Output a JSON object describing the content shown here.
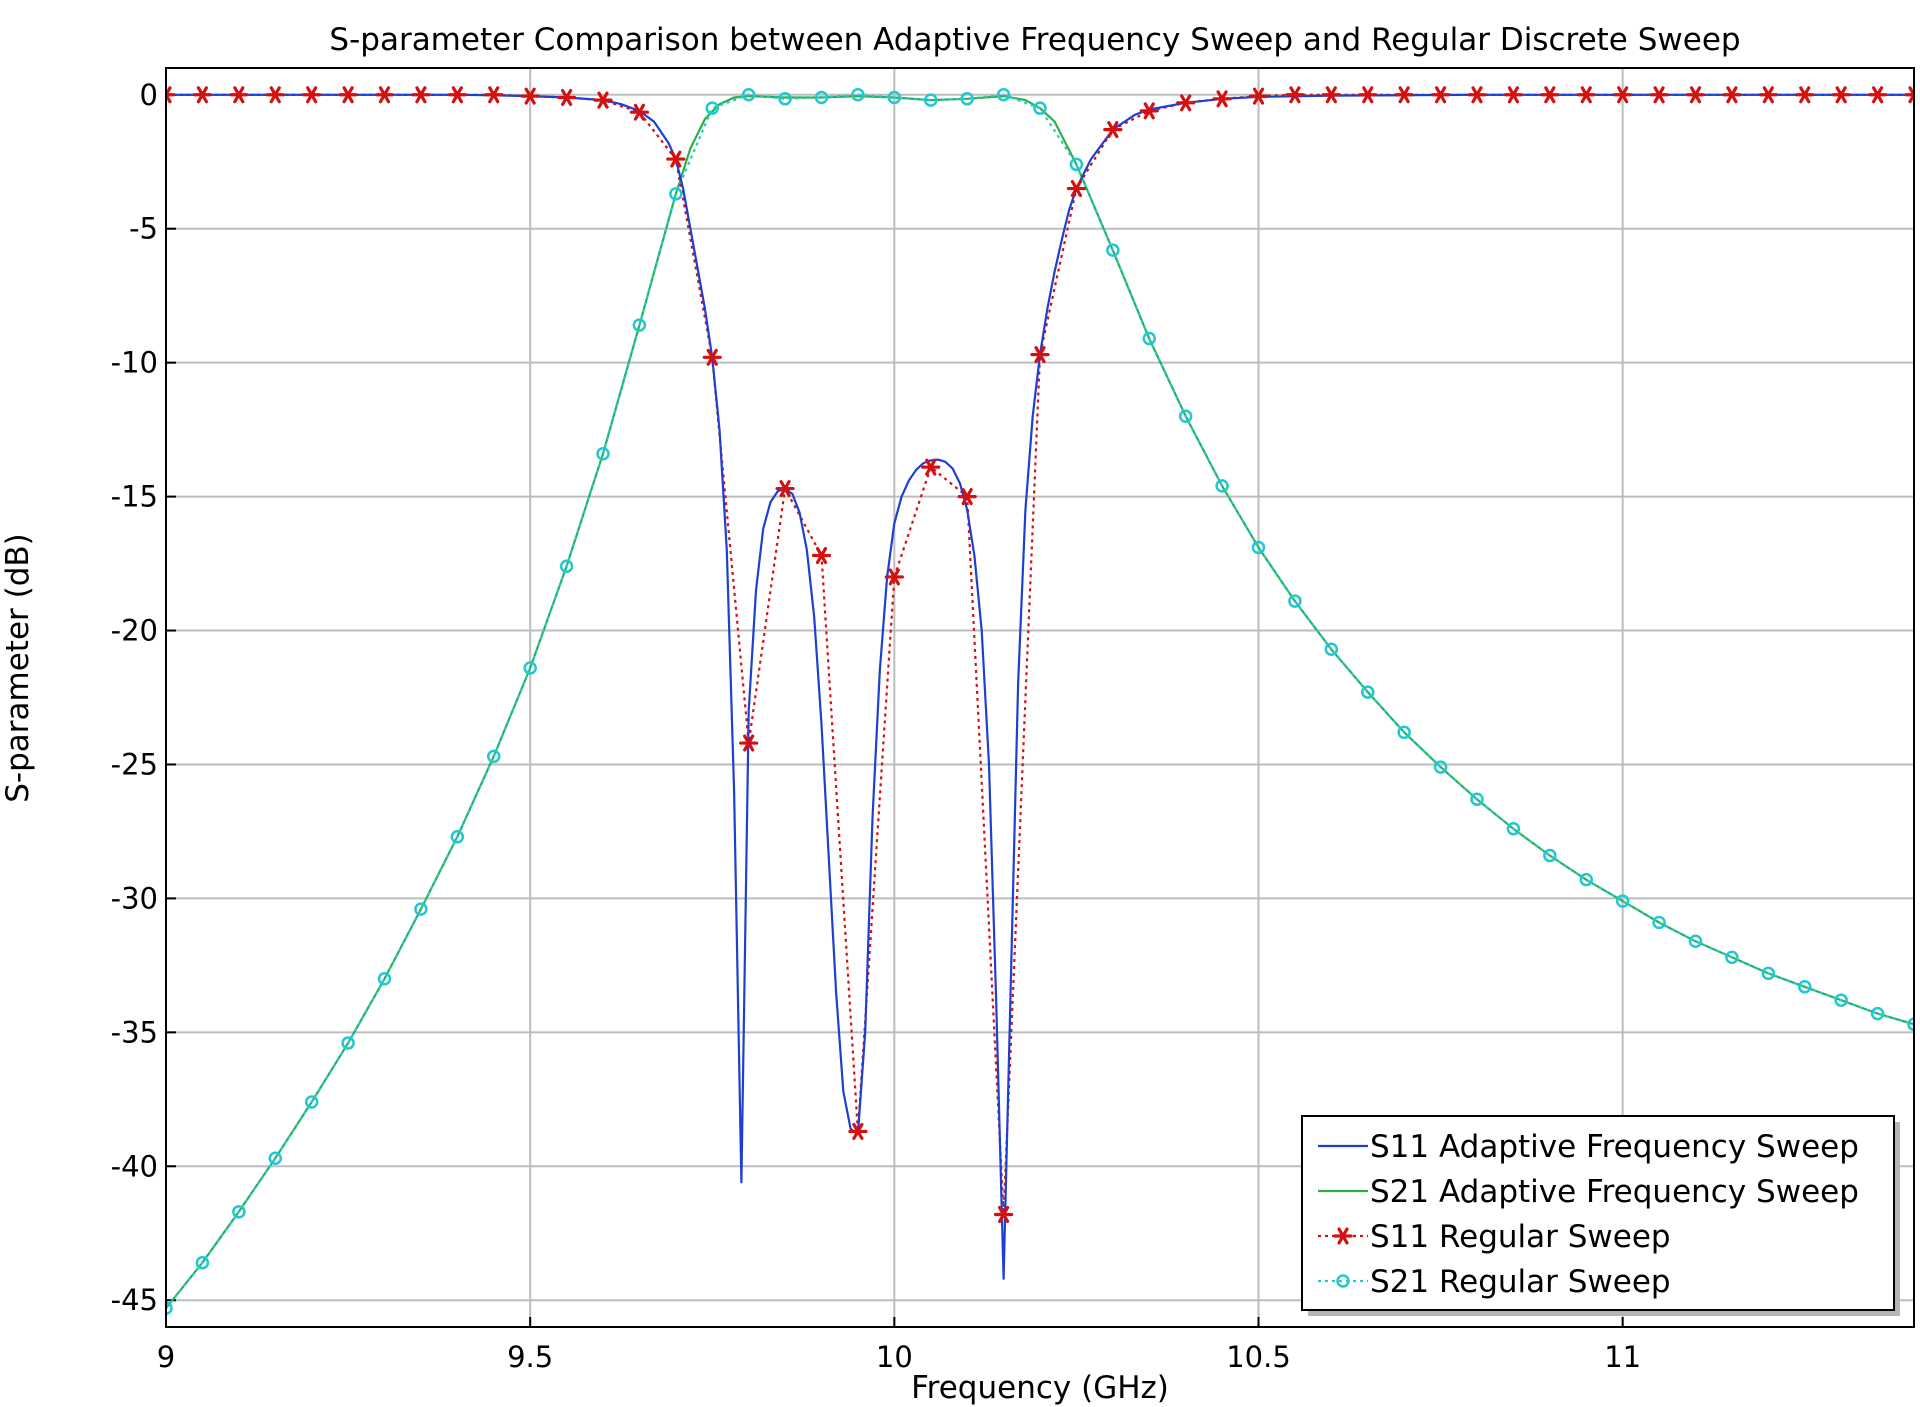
{
  "chart_data": {
    "type": "line",
    "title": "S-parameter Comparison between Adaptive Frequency Sweep and Regular Discrete Sweep",
    "xlabel": "Frequency (GHz)",
    "ylabel": "S-parameter (dB)",
    "xlim": [
      9.0,
      11.4
    ],
    "ylim": [
      -46.0,
      1.0
    ],
    "xticks": [
      9,
      9.5,
      10,
      10.5,
      11
    ],
    "xtick_labels": [
      "9",
      "9.5",
      "10",
      "10.5",
      "11"
    ],
    "yticks": [
      0,
      -5,
      -10,
      -15,
      -20,
      -25,
      -30,
      -35,
      -40,
      -45
    ],
    "ytick_labels": [
      "0",
      "-5",
      "-10",
      "-15",
      "-20",
      "-25",
      "-30",
      "-35",
      "-40",
      "-45"
    ],
    "grid": true,
    "legend_position": "bottom-right",
    "series": [
      {
        "name": "S11 Adaptive Frequency Sweep",
        "color": "#1f3fd0",
        "style": "solid",
        "marker": "none",
        "x": [
          9.0,
          9.1,
          9.2,
          9.3,
          9.4,
          9.45,
          9.5,
          9.55,
          9.6,
          9.625,
          9.65,
          9.67,
          9.69,
          9.7,
          9.71,
          9.72,
          9.73,
          9.74,
          9.75,
          9.76,
          9.77,
          9.78,
          9.79,
          9.8,
          9.81,
          9.82,
          9.83,
          9.84,
          9.85,
          9.86,
          9.87,
          9.88,
          9.89,
          9.9,
          9.91,
          9.92,
          9.93,
          9.94,
          9.95,
          9.96,
          9.97,
          9.98,
          9.99,
          10.0,
          10.01,
          10.02,
          10.03,
          10.04,
          10.05,
          10.06,
          10.07,
          10.08,
          10.09,
          10.1,
          10.11,
          10.12,
          10.13,
          10.14,
          10.15,
          10.16,
          10.17,
          10.18,
          10.19,
          10.2,
          10.21,
          10.22,
          10.23,
          10.24,
          10.25,
          10.27,
          10.3,
          10.33,
          10.35,
          10.4,
          10.45,
          10.5,
          10.6,
          10.8,
          11.0,
          11.2,
          11.4
        ],
        "values": [
          0.0,
          0.0,
          0.0,
          0.0,
          0.0,
          -0.02,
          -0.05,
          -0.1,
          -0.2,
          -0.35,
          -0.6,
          -1.0,
          -1.8,
          -2.4,
          -3.5,
          -5.0,
          -6.5,
          -8.0,
          -9.8,
          -12.5,
          -17.0,
          -26.0,
          -40.6,
          -23.0,
          -18.5,
          -16.2,
          -15.2,
          -14.8,
          -14.7,
          -14.9,
          -15.6,
          -17.0,
          -19.5,
          -23.5,
          -28.5,
          -33.5,
          -37.2,
          -38.6,
          -38.8,
          -35.0,
          -27.0,
          -21.5,
          -18.0,
          -16.0,
          -15.0,
          -14.4,
          -14.0,
          -13.75,
          -13.65,
          -13.62,
          -13.7,
          -13.95,
          -14.5,
          -15.5,
          -17.2,
          -20.0,
          -25.0,
          -34.0,
          -44.2,
          -33.0,
          -22.0,
          -15.5,
          -12.0,
          -9.7,
          -8.0,
          -6.6,
          -5.4,
          -4.3,
          -3.5,
          -2.4,
          -1.3,
          -0.75,
          -0.55,
          -0.3,
          -0.15,
          -0.08,
          -0.03,
          0.0,
          0.0,
          0.0,
          0.0
        ]
      },
      {
        "name": "S21 Adaptive Frequency Sweep",
        "color": "#2db04a",
        "style": "solid",
        "marker": "none",
        "x": [
          9.0,
          9.05,
          9.1,
          9.15,
          9.2,
          9.25,
          9.3,
          9.35,
          9.4,
          9.45,
          9.5,
          9.55,
          9.6,
          9.65,
          9.7,
          9.72,
          9.74,
          9.76,
          9.78,
          9.8,
          9.85,
          9.9,
          9.95,
          10.0,
          10.05,
          10.1,
          10.15,
          10.18,
          10.2,
          10.22,
          10.25,
          10.3,
          10.35,
          10.4,
          10.45,
          10.5,
          10.55,
          10.6,
          10.65,
          10.7,
          10.75,
          10.8,
          10.85,
          10.9,
          10.95,
          11.0,
          11.05,
          11.1,
          11.15,
          11.2,
          11.25,
          11.3,
          11.35,
          11.4
        ],
        "values": [
          -45.3,
          -43.6,
          -41.7,
          -39.7,
          -37.6,
          -35.4,
          -33.0,
          -30.4,
          -27.7,
          -24.7,
          -21.4,
          -17.6,
          -13.4,
          -8.6,
          -3.7,
          -2.0,
          -0.9,
          -0.35,
          -0.1,
          -0.05,
          -0.1,
          -0.1,
          -0.05,
          -0.1,
          -0.2,
          -0.15,
          -0.05,
          -0.2,
          -0.5,
          -1.0,
          -2.6,
          -5.8,
          -9.1,
          -12.0,
          -14.6,
          -16.9,
          -18.9,
          -20.7,
          -22.3,
          -23.8,
          -25.1,
          -26.3,
          -27.4,
          -28.4,
          -29.3,
          -30.1,
          -30.9,
          -31.6,
          -32.2,
          -32.8,
          -33.3,
          -33.8,
          -34.3,
          -34.7
        ]
      },
      {
        "name": "S11 Regular Sweep",
        "color": "#d41010",
        "style": "dotted",
        "marker": "star",
        "x": [
          9.0,
          9.05,
          9.1,
          9.15,
          9.2,
          9.25,
          9.3,
          9.35,
          9.4,
          9.45,
          9.5,
          9.55,
          9.6,
          9.65,
          9.7,
          9.75,
          9.8,
          9.85,
          9.9,
          9.95,
          10.0,
          10.05,
          10.1,
          10.15,
          10.2,
          10.25,
          10.3,
          10.35,
          10.4,
          10.45,
          10.5,
          10.55,
          10.6,
          10.65,
          10.7,
          10.75,
          10.8,
          10.85,
          10.9,
          10.95,
          11.0,
          11.05,
          11.1,
          11.15,
          11.2,
          11.25,
          11.3,
          11.35,
          11.4
        ],
        "values": [
          0.0,
          0.0,
          0.0,
          0.0,
          0.0,
          0.0,
          0.0,
          0.0,
          0.0,
          0.0,
          -0.05,
          -0.1,
          -0.2,
          -0.65,
          -2.4,
          -9.8,
          -24.2,
          -14.7,
          -17.2,
          -38.7,
          -18.0,
          -13.9,
          -15.0,
          -41.8,
          -9.7,
          -3.5,
          -1.3,
          -0.6,
          -0.3,
          -0.15,
          -0.05,
          0.0,
          0.0,
          0.0,
          0.0,
          0.0,
          0.0,
          0.0,
          0.0,
          0.0,
          0.0,
          0.0,
          0.0,
          0.0,
          0.0,
          0.0,
          0.0,
          0.0,
          0.0
        ]
      },
      {
        "name": "S21 Regular Sweep",
        "color": "#22c8d0",
        "style": "dotted",
        "marker": "circle",
        "x": [
          9.0,
          9.05,
          9.1,
          9.15,
          9.2,
          9.25,
          9.3,
          9.35,
          9.4,
          9.45,
          9.5,
          9.55,
          9.6,
          9.65,
          9.7,
          9.75,
          9.8,
          9.85,
          9.9,
          9.95,
          10.0,
          10.05,
          10.1,
          10.15,
          10.2,
          10.25,
          10.3,
          10.35,
          10.4,
          10.45,
          10.5,
          10.55,
          10.6,
          10.65,
          10.7,
          10.75,
          10.8,
          10.85,
          10.9,
          10.95,
          11.0,
          11.05,
          11.1,
          11.15,
          11.2,
          11.25,
          11.3,
          11.35,
          11.4
        ],
        "values": [
          -45.3,
          -43.6,
          -41.7,
          -39.7,
          -37.6,
          -35.4,
          -33.0,
          -30.4,
          -27.7,
          -24.7,
          -21.4,
          -17.6,
          -13.4,
          -8.6,
          -3.7,
          -0.5,
          0.0,
          -0.15,
          -0.1,
          0.0,
          -0.1,
          -0.2,
          -0.15,
          0.0,
          -0.5,
          -2.6,
          -5.8,
          -9.1,
          -12.0,
          -14.6,
          -16.9,
          -18.9,
          -20.7,
          -22.3,
          -23.8,
          -25.1,
          -26.3,
          -27.4,
          -28.4,
          -29.3,
          -30.1,
          -30.9,
          -31.6,
          -32.2,
          -32.8,
          -33.3,
          -33.8,
          -34.3,
          -34.7
        ]
      }
    ]
  }
}
